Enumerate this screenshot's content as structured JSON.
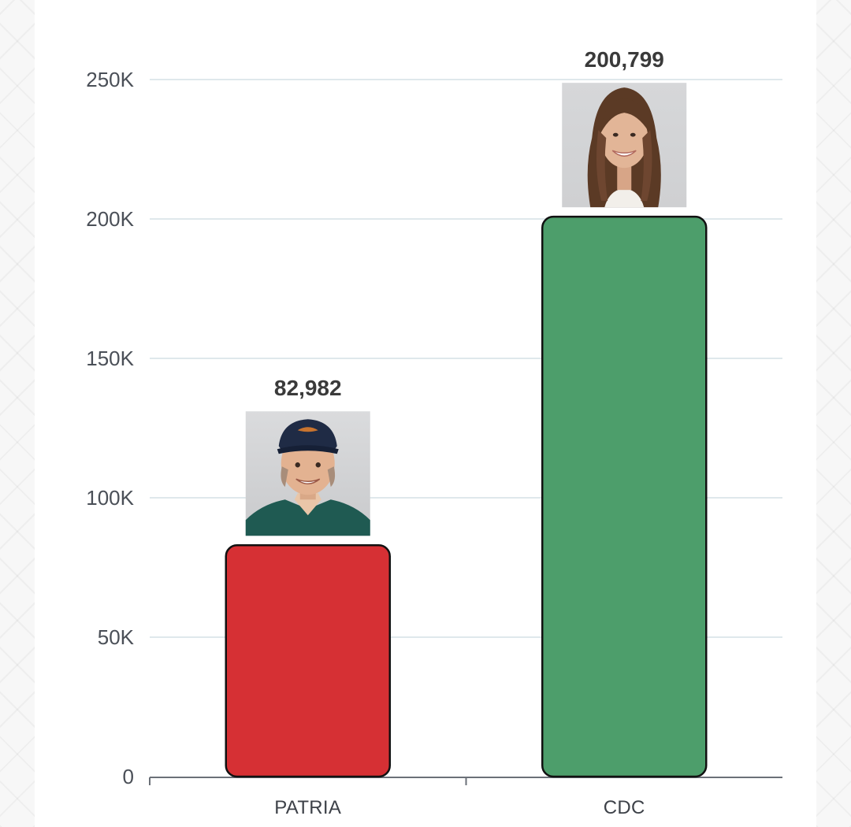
{
  "chart_data": {
    "type": "bar",
    "categories": [
      "PATRIA",
      "CDC"
    ],
    "values": [
      82982,
      200799
    ],
    "value_labels": [
      "82,982",
      "200,799"
    ],
    "bar_colors": [
      "#d63034",
      "#4d9e6b"
    ],
    "y_ticks": [
      0,
      50000,
      100000,
      150000,
      200000,
      250000
    ],
    "y_tick_labels": [
      "0",
      "50K",
      "100K",
      "150K",
      "200K",
      "250K"
    ],
    "ylim": [
      0,
      250000
    ],
    "grid": true,
    "legend": "none",
    "title": "",
    "xlabel": "",
    "ylabel": "",
    "bar_icons": [
      "man-in-cap-photo-icon",
      "woman-portrait-photo-icon"
    ]
  },
  "colors": {
    "grid": "#dfe8ec",
    "axis": "#6b7078",
    "bar_outline": "#111111",
    "page_background": "#ffffff"
  }
}
